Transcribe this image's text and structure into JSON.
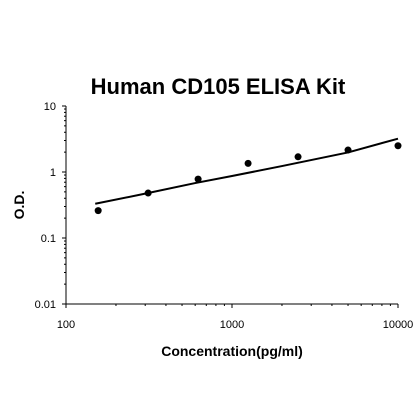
{
  "chart_data": {
    "type": "scatter",
    "title": "Human CD105 ELISA Kit",
    "xlabel": "Concentration(pg/ml)",
    "ylabel": "O.D.",
    "x_scale": "log",
    "y_scale": "log",
    "xlim": [
      100,
      10000
    ],
    "ylim": [
      0.01,
      10
    ],
    "x_ticks": [
      "100",
      "1000",
      "10000"
    ],
    "y_ticks": [
      "10",
      "1",
      "0.1",
      "0.01"
    ],
    "grid": false,
    "legend": "none",
    "series": [
      {
        "marker": "dot",
        "points": [
          {
            "x": 156.25,
            "y": 0.26
          },
          {
            "x": 312.5,
            "y": 0.48
          },
          {
            "x": 625,
            "y": 0.78
          },
          {
            "x": 1250,
            "y": 1.35
          },
          {
            "x": 2500,
            "y": 1.7
          },
          {
            "x": 5000,
            "y": 2.15
          },
          {
            "x": 10000,
            "y": 2.5
          }
        ]
      },
      {
        "type": "line",
        "points": [
          {
            "x": 150,
            "y": 0.33
          },
          {
            "x": 300,
            "y": 0.47
          },
          {
            "x": 600,
            "y": 0.68
          },
          {
            "x": 1000,
            "y": 0.87
          },
          {
            "x": 2000,
            "y": 1.23
          },
          {
            "x": 5000,
            "y": 1.98
          },
          {
            "x": 10000,
            "y": 3.2
          }
        ]
      }
    ]
  }
}
